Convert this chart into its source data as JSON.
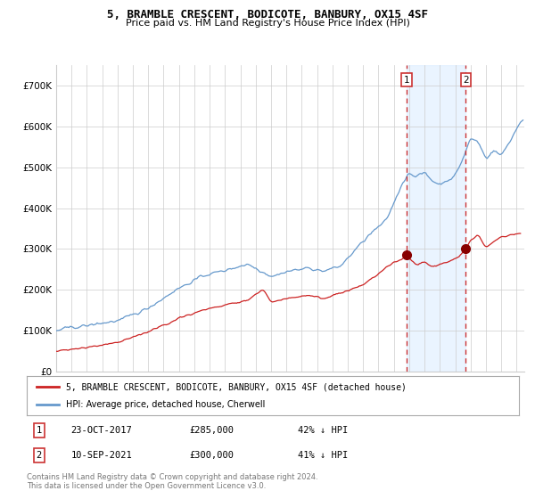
{
  "title": "5, BRAMBLE CRESCENT, BODICOTE, BANBURY, OX15 4SF",
  "subtitle": "Price paid vs. HM Land Registry's House Price Index (HPI)",
  "legend_line1": "5, BRAMBLE CRESCENT, BODICOTE, BANBURY, OX15 4SF (detached house)",
  "legend_line2": "HPI: Average price, detached house, Cherwell",
  "sale1_date": "23-OCT-2017",
  "sale1_price": 285000,
  "sale1_hpi": "42% ↓ HPI",
  "sale2_date": "10-SEP-2021",
  "sale2_price": 300000,
  "sale2_hpi": "41% ↓ HPI",
  "copyright": "Contains HM Land Registry data © Crown copyright and database right 2024.\nThis data is licensed under the Open Government Licence v3.0.",
  "hpi_color": "#6699cc",
  "price_color": "#cc2222",
  "marker_color": "#880000",
  "bg_color": "#ffffff",
  "grid_color": "#cccccc",
  "shade_color": "#ddeeff",
  "vline_color": "#cc3333",
  "ylim": [
    0,
    750000
  ],
  "xlim_start": 1995.0,
  "xlim_end": 2025.5,
  "sale1_x": 2017.81,
  "sale2_x": 2021.69,
  "yticks": [
    0,
    100000,
    200000,
    300000,
    400000,
    500000,
    600000,
    700000
  ],
  "ytick_labels": [
    "£0",
    "£100K",
    "£200K",
    "£300K",
    "£400K",
    "£500K",
    "£600K",
    "£700K"
  ]
}
